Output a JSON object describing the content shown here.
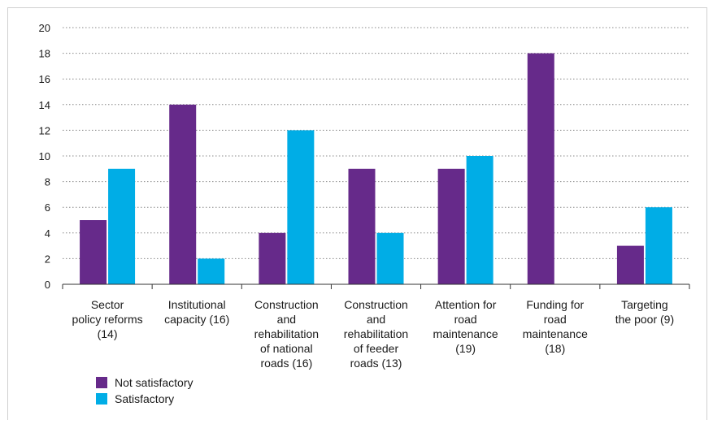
{
  "chart_data": {
    "type": "bar",
    "title": "",
    "xlabel": "",
    "ylabel": "",
    "ylim": [
      0,
      20
    ],
    "yticks": [
      "0",
      "2",
      "4",
      "6",
      "8",
      "10",
      "12",
      "14",
      "16",
      "18",
      "20"
    ],
    "grid": "horizontal dotted",
    "legend_position": "bottom-left",
    "categories": [
      [
        "Sector",
        "policy reforms",
        "(14)"
      ],
      [
        "Institutional",
        "capacity (16)"
      ],
      [
        "Construction",
        "and",
        "rehabilitation",
        "of national",
        "roads (16)"
      ],
      [
        "Construction",
        "and",
        "rehabilitation",
        "of feeder",
        "roads (13)"
      ],
      [
        "Attention for",
        "road",
        "maintenance",
        "(19)"
      ],
      [
        "Funding for",
        "road",
        "maintenance",
        "(18)"
      ],
      [
        "Targeting",
        "the poor (9)"
      ]
    ],
    "series": [
      {
        "name": "Not satisfactory",
        "color": "#662a8a",
        "values": [
          5,
          14,
          4,
          9,
          9,
          18,
          3
        ]
      },
      {
        "name": "Satisfactory",
        "color": "#00ade6",
        "values": [
          9,
          2,
          12,
          4,
          10,
          0,
          6
        ]
      }
    ]
  }
}
